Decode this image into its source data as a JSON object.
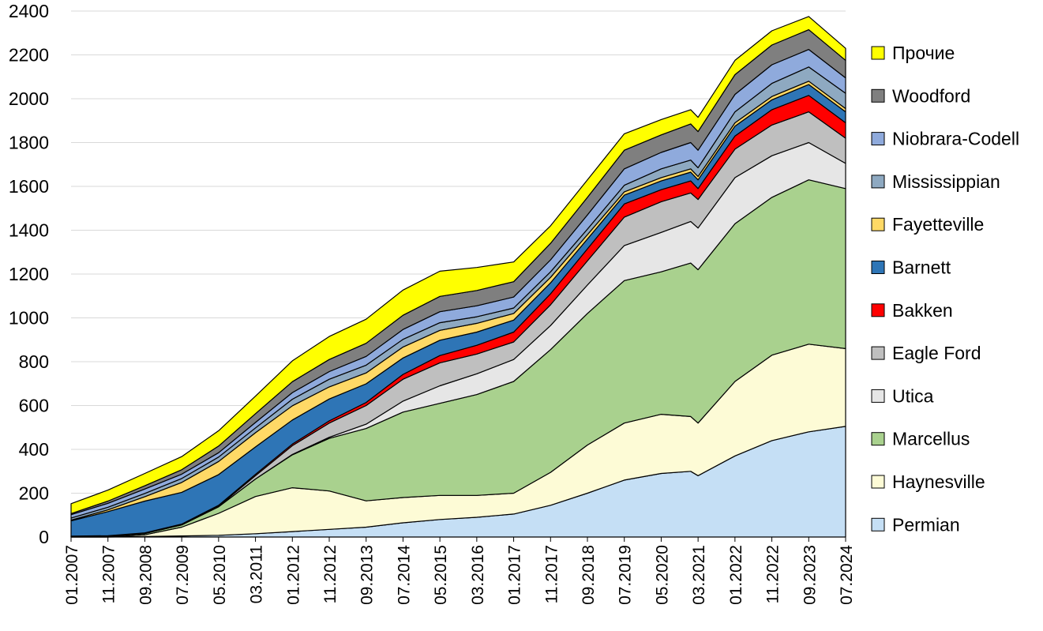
{
  "chart_data": {
    "type": "area",
    "stacked": true,
    "ylim": [
      0,
      2400
    ],
    "yticks": [
      0,
      200,
      400,
      600,
      800,
      1000,
      1200,
      1400,
      1600,
      1800,
      2000,
      2200,
      2400
    ],
    "xticks": [
      "01.2007",
      "11.2007",
      "09.2008",
      "07.2009",
      "05.2010",
      "03.2011",
      "01.2012",
      "11.2012",
      "09.2013",
      "07.2014",
      "05.2015",
      "03.2016",
      "01.2017",
      "11.2017",
      "09.2018",
      "07.2019",
      "05.2020",
      "03.2021",
      "01.2022",
      "11.2022",
      "09.2023",
      "07.2024"
    ],
    "x": [
      "01.2007",
      "11.2007",
      "09.2008",
      "07.2009",
      "05.2010",
      "03.2011",
      "01.2012",
      "11.2012",
      "09.2013",
      "07.2014",
      "05.2015",
      "03.2016",
      "01.2017",
      "11.2017",
      "09.2018",
      "07.2019",
      "05.2020",
      "01.2021",
      "03.2021",
      "01.2022",
      "11.2022",
      "09.2023",
      "07.2024"
    ],
    "grid": true,
    "legend_position": "right",
    "series": [
      {
        "name": "Permian",
        "color": "#c5dff5",
        "values": [
          0,
          0,
          2,
          5,
          8,
          15,
          25,
          35,
          45,
          65,
          80,
          90,
          105,
          145,
          200,
          260,
          290,
          300,
          280,
          370,
          440,
          480,
          505
        ]
      },
      {
        "name": "Haynesville",
        "color": "#fdfbd6",
        "values": [
          0,
          0,
          8,
          40,
          100,
          170,
          200,
          175,
          120,
          115,
          110,
          100,
          95,
          150,
          220,
          260,
          270,
          250,
          240,
          340,
          390,
          400,
          355
        ]
      },
      {
        "name": "Marcellus",
        "color": "#a9d18e",
        "values": [
          2,
          4,
          6,
          10,
          30,
          80,
          150,
          240,
          330,
          390,
          420,
          460,
          510,
          560,
          600,
          650,
          650,
          700,
          700,
          720,
          720,
          750,
          730
        ]
      },
      {
        "name": "Utica",
        "color": "#e6e6e6",
        "values": [
          0,
          0,
          0,
          0,
          0,
          0,
          2,
          5,
          20,
          50,
          80,
          95,
          100,
          110,
          130,
          160,
          180,
          190,
          190,
          210,
          190,
          170,
          115
        ]
      },
      {
        "name": "Eagle Ford",
        "color": "#bfbfbf",
        "values": [
          0,
          0,
          0,
          0,
          2,
          15,
          40,
          65,
          85,
          100,
          105,
          90,
          80,
          95,
          110,
          130,
          140,
          130,
          130,
          130,
          140,
          140,
          115
        ]
      },
      {
        "name": "Bakken",
        "color": "#ff0000",
        "values": [
          2,
          2,
          3,
          4,
          5,
          6,
          7,
          10,
          14,
          22,
          33,
          40,
          45,
          50,
          55,
          60,
          55,
          55,
          50,
          60,
          70,
          75,
          70
        ]
      },
      {
        "name": "Barnett",
        "color": "#2e75b6",
        "values": [
          70,
          110,
          145,
          145,
          140,
          125,
          110,
          100,
          85,
          75,
          70,
          60,
          55,
          50,
          45,
          40,
          40,
          40,
          40,
          45,
          45,
          50,
          50
        ]
      },
      {
        "name": "Fayetteville",
        "color": "#ffd966",
        "values": [
          3,
          8,
          20,
          45,
          60,
          65,
          65,
          55,
          50,
          50,
          45,
          40,
          30,
          25,
          20,
          15,
          15,
          15,
          15,
          15,
          15,
          15,
          15
        ]
      },
      {
        "name": "Mississippian",
        "color": "#8ea9c1",
        "values": [
          10,
          12,
          15,
          18,
          20,
          22,
          30,
          35,
          35,
          35,
          35,
          30,
          25,
          25,
          25,
          30,
          40,
          40,
          40,
          50,
          60,
          65,
          70
        ]
      },
      {
        "name": "Niobrara-Codell",
        "color": "#8faadc",
        "values": [
          15,
          18,
          20,
          20,
          20,
          25,
          30,
          35,
          40,
          45,
          50,
          50,
          50,
          55,
          65,
          75,
          75,
          80,
          80,
          80,
          85,
          80,
          70
        ]
      },
      {
        "name": "Woodford",
        "color": "#7f7f7f",
        "values": [
          5,
          10,
          15,
          20,
          30,
          40,
          50,
          55,
          60,
          65,
          70,
          70,
          70,
          75,
          80,
          85,
          80,
          85,
          85,
          90,
          90,
          90,
          80
        ]
      },
      {
        "name": "Прочие",
        "color": "#ffff00",
        "values": [
          45,
          50,
          56,
          60,
          70,
          80,
          95,
          105,
          110,
          115,
          115,
          105,
          90,
          80,
          80,
          75,
          70,
          65,
          65,
          65,
          65,
          60,
          55
        ]
      }
    ]
  }
}
